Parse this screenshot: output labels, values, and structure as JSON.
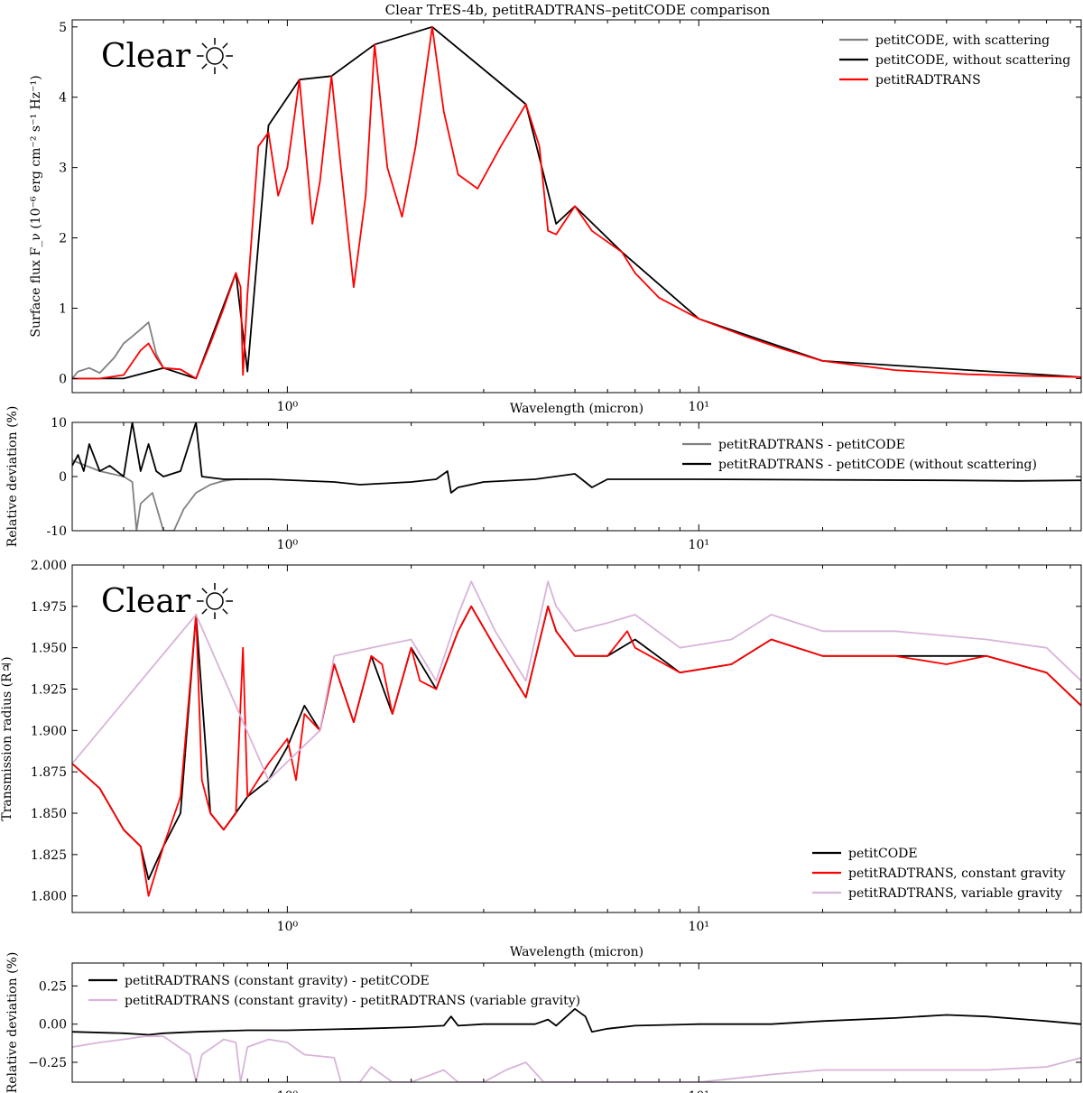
{
  "title": "Clear TrES-4b, petitRADTRANS–petitCODE comparison",
  "colors": {
    "red": "#ff0000",
    "black": "#000000",
    "gray": "#808080",
    "lavender": "#d8b4da"
  },
  "chart_data": [
    {
      "id": "emission",
      "type": "line",
      "xscale": "log",
      "xlim": [
        0.3,
        85
      ],
      "ylim": [
        -0.2,
        5.1
      ],
      "xlabel": "Wavelength (micron)",
      "ylabel": "Surface flux F_ν (10⁻⁶ erg cm⁻² s⁻¹ Hz⁻¹)",
      "xticklabels": [
        "10⁰",
        "10¹"
      ],
      "yticks": [
        0,
        1,
        2,
        3,
        4,
        5
      ],
      "annotation": "Clear",
      "legend_position": "top-right",
      "series": [
        {
          "name": "petitCODE, with scattering",
          "color": "#808080",
          "x": [
            0.3,
            0.31,
            0.33,
            0.35,
            0.38,
            0.4,
            0.42,
            0.44,
            0.46,
            0.48,
            0.5,
            0.55,
            0.6
          ],
          "y": [
            0.0,
            0.1,
            0.15,
            0.08,
            0.3,
            0.5,
            0.6,
            0.7,
            0.8,
            0.35,
            0.15,
            0.13,
            0.0
          ]
        },
        {
          "name": "petitCODE, without scattering",
          "color": "#000000",
          "x": [
            0.3,
            0.4,
            0.5,
            0.6,
            0.75,
            0.8,
            0.9,
            1.07,
            1.28,
            1.63,
            2.25,
            3.8,
            4.5,
            5.0,
            6.5,
            10,
            20,
            85
          ],
          "y": [
            0.0,
            0.0,
            0.15,
            0.0,
            1.5,
            0.1,
            3.6,
            4.25,
            4.3,
            4.75,
            5.0,
            3.9,
            2.2,
            2.45,
            1.8,
            0.85,
            0.25,
            0.02
          ]
        },
        {
          "name": "petitRADTRANS",
          "color": "#ff0000",
          "x": [
            0.3,
            0.35,
            0.4,
            0.44,
            0.46,
            0.48,
            0.5,
            0.55,
            0.6,
            0.65,
            0.7,
            0.75,
            0.77,
            0.78,
            0.8,
            0.85,
            0.9,
            0.95,
            1.0,
            1.07,
            1.15,
            1.2,
            1.28,
            1.35,
            1.45,
            1.55,
            1.63,
            1.75,
            1.9,
            2.05,
            2.25,
            2.4,
            2.6,
            2.9,
            3.3,
            3.8,
            4.1,
            4.3,
            4.5,
            5.0,
            5.5,
            6.5,
            7,
            8,
            10,
            13,
            16,
            20,
            30,
            45,
            60,
            85
          ],
          "y": [
            0.0,
            0.0,
            0.05,
            0.4,
            0.5,
            0.3,
            0.15,
            0.13,
            0.0,
            0.5,
            1.0,
            1.5,
            1.3,
            0.05,
            1.2,
            3.3,
            3.5,
            2.6,
            3.0,
            4.25,
            2.2,
            2.8,
            4.3,
            3.0,
            1.3,
            2.6,
            4.75,
            3.0,
            2.3,
            3.3,
            5.0,
            3.8,
            2.9,
            2.7,
            3.3,
            3.9,
            3.3,
            2.1,
            2.05,
            2.45,
            2.1,
            1.8,
            1.5,
            1.15,
            0.85,
            0.6,
            0.42,
            0.25,
            0.12,
            0.06,
            0.04,
            0.02
          ]
        }
      ]
    },
    {
      "id": "emission-deviation",
      "type": "line",
      "xscale": "log",
      "xlim": [
        0.3,
        85
      ],
      "ylim": [
        -10,
        10
      ],
      "ylabel": "Relative deviation (%)",
      "xticklabels": [
        "10⁰",
        "10¹"
      ],
      "yticks": [
        -10,
        0,
        10
      ],
      "legend_position": "top-right",
      "series": [
        {
          "name": "petitRADTRANS - petitCODE",
          "color": "#808080",
          "x": [
            0.3,
            0.35,
            0.4,
            0.42,
            0.43,
            0.44,
            0.47,
            0.5,
            0.53,
            0.56,
            0.6,
            0.65,
            0.7,
            0.75,
            0.8
          ],
          "y": [
            3,
            1,
            0,
            -1,
            -10,
            -5,
            -3,
            -10,
            -10,
            -6,
            -3,
            -1.5,
            -0.8,
            -0.5,
            -0.5
          ]
        },
        {
          "name": "petitRADTRANS - petitCODE (without scattering)",
          "color": "#000000",
          "x": [
            0.3,
            0.31,
            0.32,
            0.33,
            0.35,
            0.37,
            0.4,
            0.42,
            0.44,
            0.46,
            0.48,
            0.5,
            0.55,
            0.6,
            0.62,
            0.7,
            0.9,
            1.3,
            1.5,
            2.0,
            2.3,
            2.45,
            2.5,
            2.6,
            3.0,
            4.0,
            5.0,
            5.5,
            6.0,
            8,
            10,
            20,
            40,
            60,
            85
          ],
          "y": [
            2,
            4,
            1,
            6,
            1,
            2,
            0,
            10,
            1,
            6,
            1,
            0,
            1,
            10,
            0,
            -0.5,
            -0.5,
            -1,
            -1.5,
            -1,
            -0.5,
            1,
            -3,
            -2,
            -1,
            -0.5,
            0.5,
            -2,
            -0.5,
            -0.5,
            -0.5,
            -0.6,
            -0.7,
            -0.8,
            -0.7
          ]
        }
      ]
    },
    {
      "id": "transmission",
      "type": "line",
      "xscale": "log",
      "xlim": [
        0.3,
        85
      ],
      "ylim": [
        1.79,
        2.0
      ],
      "xlabel": "Wavelength (micron)",
      "ylabel": "Transmission radius (R♃)",
      "xticklabels": [
        "10⁰",
        "10¹"
      ],
      "yticks": [
        "1.800",
        "1.825",
        "1.850",
        "1.875",
        "1.900",
        "1.925",
        "1.950",
        "1.975",
        "2.000"
      ],
      "annotation": "Clear",
      "legend_position": "bottom-right",
      "series": [
        {
          "name": "petitCODE",
          "color": "#000000",
          "x": [
            0.3,
            0.35,
            0.4,
            0.44,
            0.46,
            0.5,
            0.55,
            0.6,
            0.65,
            0.7,
            0.8,
            0.9,
            1.0,
            1.1,
            1.2,
            1.3,
            1.45,
            1.6,
            1.8,
            2.0,
            2.3,
            2.6,
            2.8,
            3.2,
            3.8,
            4.3,
            4.5,
            5.0,
            6.0,
            7.0,
            9.0,
            12,
            15,
            20,
            30,
            50,
            70,
            85
          ],
          "y": [
            1.88,
            1.865,
            1.84,
            1.83,
            1.81,
            1.83,
            1.85,
            1.97,
            1.85,
            1.84,
            1.86,
            1.87,
            1.89,
            1.915,
            1.9,
            1.94,
            1.905,
            1.945,
            1.91,
            1.95,
            1.925,
            1.96,
            1.975,
            1.95,
            1.92,
            1.975,
            1.96,
            1.945,
            1.945,
            1.955,
            1.935,
            1.94,
            1.955,
            1.945,
            1.945,
            1.945,
            1.935,
            1.915
          ]
        },
        {
          "name": "petitRADTRANS, constant gravity",
          "color": "#ff0000",
          "x": [
            0.3,
            0.35,
            0.4,
            0.44,
            0.46,
            0.5,
            0.55,
            0.6,
            0.62,
            0.65,
            0.7,
            0.75,
            0.78,
            0.8,
            0.9,
            1.0,
            1.05,
            1.1,
            1.2,
            1.3,
            1.45,
            1.6,
            1.7,
            1.8,
            2.0,
            2.1,
            2.3,
            2.6,
            2.8,
            3.2,
            3.8,
            4.3,
            4.5,
            5.0,
            6.0,
            6.7,
            7.0,
            9.0,
            12,
            15,
            20,
            30,
            40,
            50,
            70,
            85
          ],
          "y": [
            1.88,
            1.865,
            1.84,
            1.83,
            1.8,
            1.83,
            1.86,
            1.97,
            1.87,
            1.85,
            1.84,
            1.85,
            1.95,
            1.86,
            1.88,
            1.895,
            1.87,
            1.91,
            1.9,
            1.94,
            1.905,
            1.945,
            1.94,
            1.91,
            1.95,
            1.93,
            1.925,
            1.96,
            1.975,
            1.95,
            1.92,
            1.975,
            1.96,
            1.945,
            1.945,
            1.96,
            1.95,
            1.935,
            1.94,
            1.955,
            1.945,
            1.945,
            1.94,
            1.945,
            1.935,
            1.915
          ]
        },
        {
          "name": "petitRADTRANS, variable gravity",
          "color": "#d8b4da",
          "x": [
            0.3,
            0.6,
            0.9,
            1.2,
            1.3,
            1.6,
            2.0,
            2.3,
            2.6,
            2.8,
            3.2,
            3.8,
            4.3,
            4.5,
            5.0,
            6.0,
            7.0,
            9.0,
            12,
            15,
            20,
            30,
            50,
            70,
            85
          ],
          "y": [
            1.88,
            1.97,
            1.87,
            1.9,
            1.945,
            1.95,
            1.955,
            1.93,
            1.97,
            1.99,
            1.96,
            1.93,
            1.99,
            1.975,
            1.96,
            1.965,
            1.97,
            1.95,
            1.955,
            1.97,
            1.96,
            1.96,
            1.955,
            1.95,
            1.93
          ]
        }
      ]
    },
    {
      "id": "transmission-deviation",
      "type": "line",
      "xscale": "log",
      "xlim": [
        0.3,
        85
      ],
      "ylim": [
        -0.38,
        0.4
      ],
      "ylabel": "Relative deviation (%)",
      "xticklabels": [
        "10⁰",
        "10¹"
      ],
      "yticks": [
        "−0.25",
        "0.00",
        "0.25"
      ],
      "legend_position": "top-left",
      "series": [
        {
          "name": "petitRADTRANS (constant gravity) - petitCODE",
          "color": "#000000",
          "x": [
            0.3,
            0.4,
            0.46,
            0.5,
            0.6,
            0.8,
            1.0,
            1.5,
            2.0,
            2.4,
            2.5,
            2.6,
            3.0,
            4.0,
            4.3,
            4.5,
            5.0,
            5.3,
            5.5,
            6.0,
            7,
            10,
            15,
            20,
            30,
            40,
            50,
            70,
            85
          ],
          "y": [
            -0.05,
            -0.06,
            -0.07,
            -0.06,
            -0.05,
            -0.04,
            -0.04,
            -0.03,
            -0.02,
            -0.01,
            0.05,
            -0.01,
            0.0,
            0.0,
            0.03,
            -0.01,
            0.1,
            0.05,
            -0.05,
            -0.03,
            -0.01,
            0.0,
            0.0,
            0.02,
            0.04,
            0.06,
            0.05,
            0.02,
            0.0
          ]
        },
        {
          "name": "petitRADTRANS (constant gravity) - petitRADTRANS (variable gravity)",
          "color": "#d8b4da",
          "x": [
            0.3,
            0.35,
            0.4,
            0.45,
            0.5,
            0.58,
            0.6,
            0.62,
            0.7,
            0.75,
            0.77,
            0.8,
            0.9,
            1.0,
            1.1,
            1.3,
            1.35,
            1.5,
            1.6,
            1.8,
            2.0,
            2.4,
            2.6,
            3.0,
            3.4,
            3.8,
            4.2,
            4.3,
            6,
            8,
            10,
            15,
            20,
            30,
            50,
            70,
            85
          ],
          "y": [
            -0.15,
            -0.12,
            -0.1,
            -0.08,
            -0.08,
            -0.2,
            -0.38,
            -0.2,
            -0.1,
            -0.12,
            -0.38,
            -0.15,
            -0.1,
            -0.12,
            -0.2,
            -0.22,
            -0.38,
            -0.38,
            -0.28,
            -0.38,
            -0.38,
            -0.3,
            -0.38,
            -0.38,
            -0.3,
            -0.25,
            -0.38,
            -0.38,
            -0.38,
            -0.38,
            -0.38,
            -0.33,
            -0.3,
            -0.3,
            -0.3,
            -0.28,
            -0.22
          ]
        }
      ]
    }
  ]
}
